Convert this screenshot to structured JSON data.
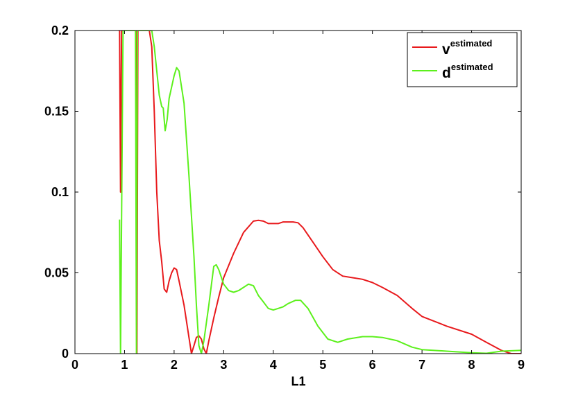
{
  "chart_data": {
    "type": "line",
    "title": "",
    "xlabel": "L1",
    "ylabel": "",
    "xlim": [
      0,
      9
    ],
    "ylim": [
      0,
      0.2
    ],
    "x_ticks": [
      "0",
      "1",
      "2",
      "3",
      "4",
      "5",
      "6",
      "7",
      "8",
      "9"
    ],
    "y_ticks": [
      "0",
      "0.05",
      "0.1",
      "0.15",
      "0.2"
    ],
    "grid": false,
    "legend_position": "top-right",
    "series": [
      {
        "name": "v",
        "name_superscript": "estimated",
        "color": "#e8191c",
        "points": [
          [
            0.88,
            0.2
          ],
          [
            0.9,
            0.2
          ],
          [
            0.92,
            0.1
          ],
          [
            0.94,
            0.2
          ],
          [
            1.0,
            0.2
          ],
          [
            1.2,
            0.2
          ],
          [
            1.23,
            0.2
          ],
          [
            1.25,
            0.0
          ],
          [
            1.27,
            0.2
          ],
          [
            1.3,
            0.2
          ],
          [
            1.5,
            0.2
          ],
          [
            1.55,
            0.19
          ],
          [
            1.6,
            0.15
          ],
          [
            1.65,
            0.1
          ],
          [
            1.7,
            0.07
          ],
          [
            1.75,
            0.057
          ],
          [
            1.8,
            0.04
          ],
          [
            1.85,
            0.038
          ],
          [
            1.9,
            0.045
          ],
          [
            1.95,
            0.05
          ],
          [
            2.0,
            0.053
          ],
          [
            2.05,
            0.052
          ],
          [
            2.1,
            0.045
          ],
          [
            2.2,
            0.03
          ],
          [
            2.3,
            0.01
          ],
          [
            2.35,
            0.0
          ],
          [
            2.4,
            0.005
          ],
          [
            2.45,
            0.01
          ],
          [
            2.5,
            0.011
          ],
          [
            2.55,
            0.009
          ],
          [
            2.6,
            0.003
          ],
          [
            2.65,
            0.0
          ],
          [
            2.7,
            0.008
          ],
          [
            2.8,
            0.022
          ],
          [
            2.9,
            0.035
          ],
          [
            3.0,
            0.047
          ],
          [
            3.2,
            0.062
          ],
          [
            3.4,
            0.075
          ],
          [
            3.6,
            0.082
          ],
          [
            3.7,
            0.0825
          ],
          [
            3.8,
            0.082
          ],
          [
            3.9,
            0.0805
          ],
          [
            4.0,
            0.0805
          ],
          [
            4.1,
            0.0805
          ],
          [
            4.2,
            0.0815
          ],
          [
            4.4,
            0.0815
          ],
          [
            4.5,
            0.081
          ],
          [
            4.6,
            0.078
          ],
          [
            4.8,
            0.069
          ],
          [
            5.0,
            0.06
          ],
          [
            5.2,
            0.052
          ],
          [
            5.4,
            0.048
          ],
          [
            5.6,
            0.047
          ],
          [
            5.8,
            0.046
          ],
          [
            6.0,
            0.044
          ],
          [
            6.2,
            0.041
          ],
          [
            6.5,
            0.036
          ],
          [
            6.8,
            0.028
          ],
          [
            7.0,
            0.023
          ],
          [
            7.5,
            0.017
          ],
          [
            8.0,
            0.012
          ],
          [
            8.3,
            0.007
          ],
          [
            8.6,
            0.002
          ],
          [
            8.8,
            0.0
          ],
          [
            9.0,
            0.0
          ]
        ]
      },
      {
        "name": "d",
        "name_superscript": "estimated",
        "color": "#5cf01c",
        "points": [
          [
            0.9,
            0.083
          ],
          [
            0.92,
            0.0
          ],
          [
            0.94,
            0.083
          ],
          [
            0.97,
            0.2
          ],
          [
            1.2,
            0.2
          ],
          [
            1.22,
            0.2
          ],
          [
            1.24,
            0.0
          ],
          [
            1.26,
            0.2
          ],
          [
            1.3,
            0.2
          ],
          [
            1.55,
            0.2
          ],
          [
            1.6,
            0.19
          ],
          [
            1.65,
            0.175
          ],
          [
            1.7,
            0.16
          ],
          [
            1.75,
            0.153
          ],
          [
            1.78,
            0.152
          ],
          [
            1.82,
            0.138
          ],
          [
            1.86,
            0.145
          ],
          [
            1.9,
            0.158
          ],
          [
            2.0,
            0.172
          ],
          [
            2.05,
            0.177
          ],
          [
            2.1,
            0.175
          ],
          [
            2.2,
            0.155
          ],
          [
            2.3,
            0.11
          ],
          [
            2.4,
            0.06
          ],
          [
            2.45,
            0.03
          ],
          [
            2.5,
            0.005
          ],
          [
            2.55,
            0.0
          ],
          [
            2.6,
            0.008
          ],
          [
            2.7,
            0.03
          ],
          [
            2.8,
            0.054
          ],
          [
            2.85,
            0.055
          ],
          [
            2.9,
            0.052
          ],
          [
            3.0,
            0.043
          ],
          [
            3.1,
            0.039
          ],
          [
            3.2,
            0.038
          ],
          [
            3.3,
            0.039
          ],
          [
            3.4,
            0.041
          ],
          [
            3.5,
            0.043
          ],
          [
            3.6,
            0.042
          ],
          [
            3.7,
            0.036
          ],
          [
            3.8,
            0.032
          ],
          [
            3.9,
            0.028
          ],
          [
            4.0,
            0.027
          ],
          [
            4.1,
            0.028
          ],
          [
            4.2,
            0.029
          ],
          [
            4.3,
            0.031
          ],
          [
            4.45,
            0.033
          ],
          [
            4.55,
            0.033
          ],
          [
            4.7,
            0.028
          ],
          [
            4.9,
            0.017
          ],
          [
            5.1,
            0.009
          ],
          [
            5.3,
            0.007
          ],
          [
            5.5,
            0.009
          ],
          [
            5.8,
            0.0105
          ],
          [
            6.0,
            0.0105
          ],
          [
            6.2,
            0.01
          ],
          [
            6.5,
            0.008
          ],
          [
            6.8,
            0.004
          ],
          [
            7.0,
            0.0025
          ],
          [
            7.5,
            0.0015
          ],
          [
            8.0,
            0.0005
          ],
          [
            8.3,
            0.0002
          ],
          [
            8.6,
            0.0015
          ],
          [
            9.0,
            0.002
          ]
        ]
      }
    ]
  }
}
